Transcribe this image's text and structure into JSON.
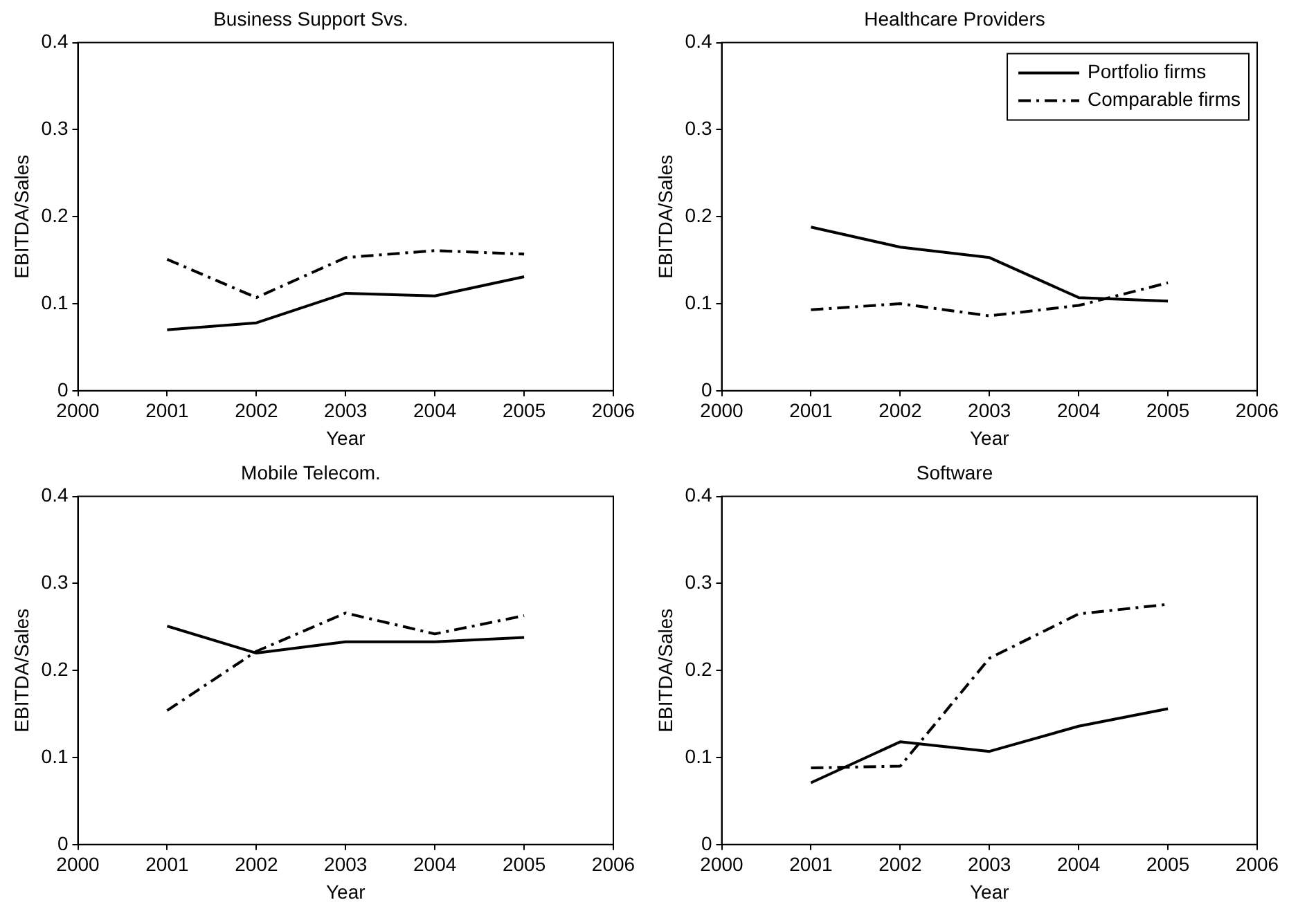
{
  "chart_data": [
    {
      "type": "line",
      "title": "Business Support Svs.",
      "xlabel": "Year",
      "ylabel": "EBITDA/Sales",
      "x": [
        2001,
        2002,
        2003,
        2004,
        2005
      ],
      "xlim": [
        2000,
        2006
      ],
      "xticks": [
        2000,
        2001,
        2002,
        2003,
        2004,
        2005,
        2006
      ],
      "ylim": [
        0,
        0.4
      ],
      "yticks": [
        0,
        0.1,
        0.2,
        0.3,
        0.4
      ],
      "grid": false,
      "legend": false,
      "marker": "none",
      "series": [
        {
          "color": "#000000",
          "line_style": "solid",
          "values": [
            0.07,
            0.078,
            0.112,
            0.109,
            0.131
          ]
        },
        {
          "color": "#000000",
          "line_style": "dashed",
          "values": [
            0.151,
            0.107,
            0.153,
            0.161,
            0.157
          ]
        }
      ]
    },
    {
      "type": "line",
      "title": "Healthcare Providers",
      "xlabel": "Year",
      "ylabel": "EBITDA/Sales",
      "x": [
        2001,
        2002,
        2003,
        2004,
        2005
      ],
      "xlim": [
        2000,
        2006
      ],
      "xticks": [
        2000,
        2001,
        2002,
        2003,
        2004,
        2005,
        2006
      ],
      "ylim": [
        0,
        0.4
      ],
      "yticks": [
        0,
        0.1,
        0.2,
        0.3,
        0.4
      ],
      "grid": false,
      "legend": "top right",
      "marker": "none",
      "series": [
        {
          "name": "Portfolio firms",
          "color": "#000000",
          "line_style": "solid",
          "values": [
            0.188,
            0.165,
            0.153,
            0.107,
            0.103
          ]
        },
        {
          "name": "Comparable firms",
          "color": "#000000",
          "line_style": "dashed",
          "values": [
            0.093,
            0.1,
            0.086,
            0.098,
            0.124
          ]
        }
      ]
    },
    {
      "type": "line",
      "title": "Mobile Telecom.",
      "xlabel": "Year",
      "ylabel": "EBITDA/Sales",
      "x": [
        2001,
        2002,
        2003,
        2004,
        2005
      ],
      "xlim": [
        2000,
        2006
      ],
      "xticks": [
        2000,
        2001,
        2002,
        2003,
        2004,
        2005,
        2006
      ],
      "ylim": [
        0,
        0.4
      ],
      "yticks": [
        0,
        0.1,
        0.2,
        0.3,
        0.4
      ],
      "grid": false,
      "legend": false,
      "marker": "none",
      "series": [
        {
          "color": "#000000",
          "line_style": "solid",
          "values": [
            0.251,
            0.22,
            0.233,
            0.233,
            0.238
          ]
        },
        {
          "color": "#000000",
          "line_style": "dashed",
          "values": [
            0.154,
            0.222,
            0.266,
            0.242,
            0.263
          ]
        }
      ]
    },
    {
      "type": "line",
      "title": "Software",
      "xlabel": "Year",
      "ylabel": "EBITDA/Sales",
      "x": [
        2001,
        2002,
        2003,
        2004,
        2005
      ],
      "xlim": [
        2000,
        2006
      ],
      "xticks": [
        2000,
        2001,
        2002,
        2003,
        2004,
        2005,
        2006
      ],
      "ylim": [
        0,
        0.4
      ],
      "yticks": [
        0,
        0.1,
        0.2,
        0.3,
        0.4
      ],
      "grid": false,
      "legend": false,
      "marker": "none",
      "series": [
        {
          "color": "#000000",
          "line_style": "solid",
          "values": [
            0.071,
            0.118,
            0.107,
            0.136,
            0.156
          ]
        },
        {
          "color": "#000000",
          "line_style": "dashed",
          "values": [
            0.088,
            0.09,
            0.214,
            0.265,
            0.276
          ]
        }
      ]
    }
  ]
}
